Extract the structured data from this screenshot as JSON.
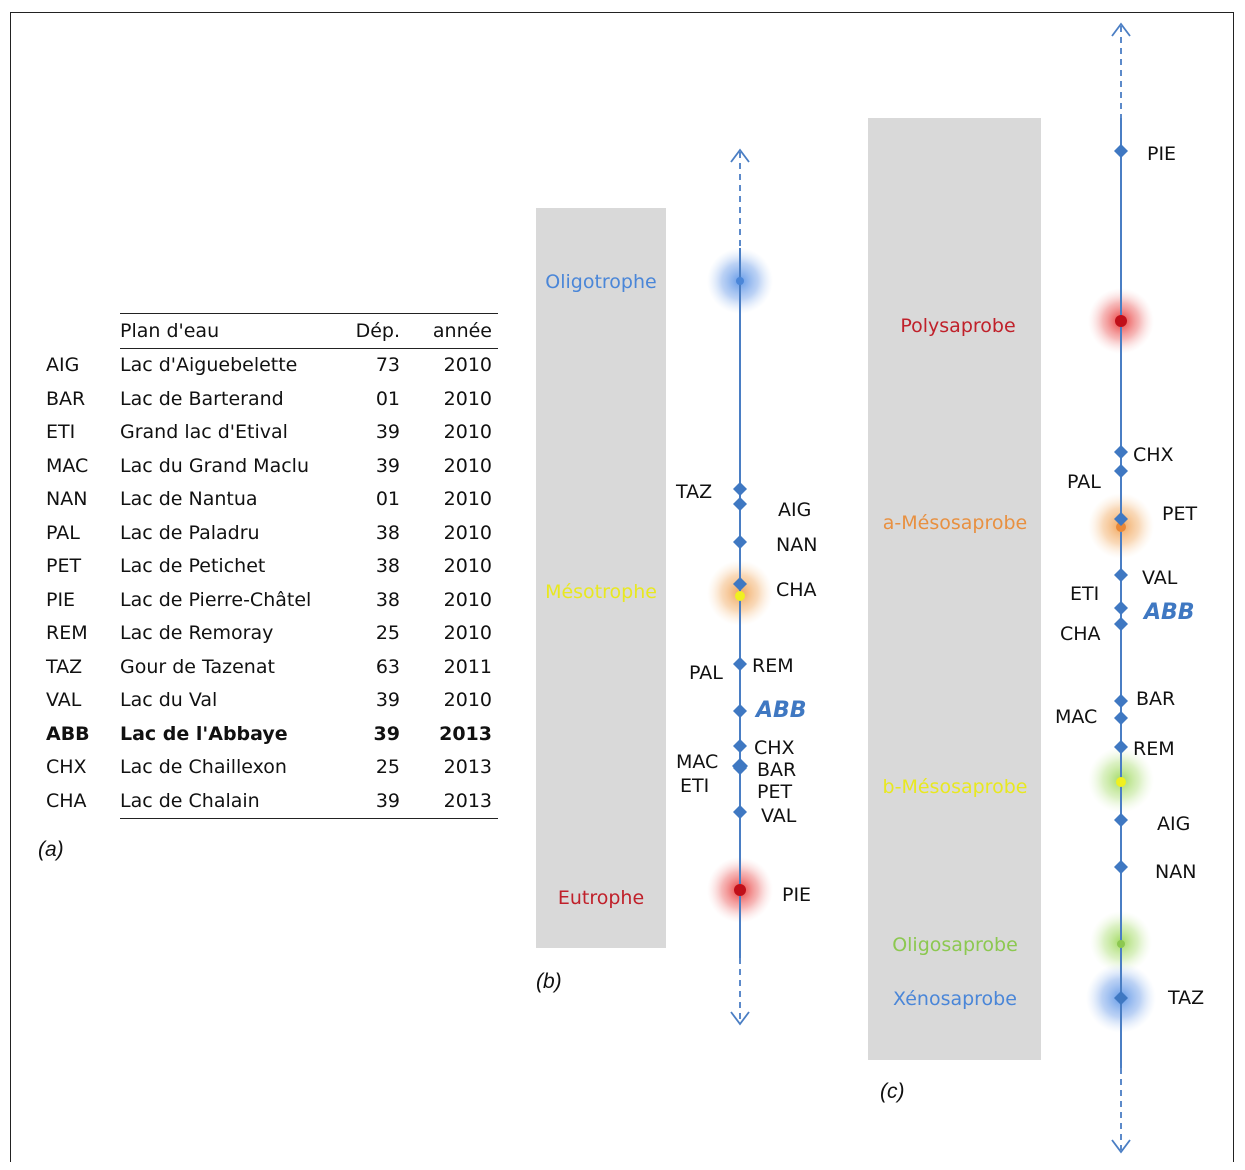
{
  "panel_a": {
    "label": "(a)",
    "headers": [
      "",
      "Plan d'eau",
      "Dép.",
      "année"
    ],
    "rows": [
      {
        "code": "AIG",
        "name": "Lac d'Aiguebelette",
        "dep": "73",
        "year": "2010",
        "bold": false
      },
      {
        "code": "BAR",
        "name": "Lac de Barterand",
        "dep": "01",
        "year": "2010",
        "bold": false
      },
      {
        "code": "ETI",
        "name": "Grand lac d'Etival",
        "dep": "39",
        "year": "2010",
        "bold": false
      },
      {
        "code": "MAC",
        "name": "Lac du Grand Maclu",
        "dep": "39",
        "year": "2010",
        "bold": false
      },
      {
        "code": "NAN",
        "name": "Lac de Nantua",
        "dep": "01",
        "year": "2010",
        "bold": false
      },
      {
        "code": "PAL",
        "name": "Lac de Paladru",
        "dep": "38",
        "year": "2010",
        "bold": false
      },
      {
        "code": "PET",
        "name": "Lac de Petichet",
        "dep": "38",
        "year": "2010",
        "bold": false
      },
      {
        "code": "PIE",
        "name": "Lac de Pierre-Châtel",
        "dep": "38",
        "year": "2010",
        "bold": false
      },
      {
        "code": "REM",
        "name": "Lac de Remoray",
        "dep": "25",
        "year": "2010",
        "bold": false
      },
      {
        "code": "TAZ",
        "name": "Gour de Tazenat",
        "dep": "63",
        "year": "2011",
        "bold": false
      },
      {
        "code": "VAL",
        "name": "Lac du Val",
        "dep": "39",
        "year": "2010",
        "bold": false
      },
      {
        "code": "ABB",
        "name": "Lac de l'Abbaye",
        "dep": "39",
        "year": "2013",
        "bold": true
      },
      {
        "code": "CHX",
        "name": "Lac de Chaillexon",
        "dep": "25",
        "year": "2013",
        "bold": false
      },
      {
        "code": "CHA",
        "name": "Lac de Chalain",
        "dep": "39",
        "year": "2013",
        "bold": false
      }
    ]
  },
  "panel_b": {
    "label": "(b)",
    "zones": [
      {
        "label": "Oligotrophe",
        "color": "#4a86d8",
        "glow": "#5b94e6"
      },
      {
        "label": "Mésotrophe",
        "color": "#e8e820",
        "glow": "#f0a050"
      },
      {
        "label": "Eutrophe",
        "color": "#c0202a",
        "glow": "#e8302f"
      }
    ],
    "lakes": [
      "TAZ",
      "AIG",
      "NAN",
      "CHA",
      "PAL",
      "REM",
      "ABB",
      "MAC",
      "ETI",
      "CHX",
      "BAR",
      "PET",
      "VAL",
      "PIE"
    ]
  },
  "panel_c": {
    "label": "(c)",
    "zones": [
      {
        "label": "Polysaprobe",
        "color": "#c0202a",
        "glow": "#e8302f"
      },
      {
        "label": "a-Mésosaprobe",
        "color": "#e89040",
        "glow": "#f0a050"
      },
      {
        "label": "b-Mésosaprobe",
        "color": "#e8e820",
        "glow": "#9ed85a"
      },
      {
        "label": "Oligosaprobe",
        "color": "#8cc850",
        "glow": "#9ed85a"
      },
      {
        "label": "Xénosaprobe",
        "color": "#4a86d8",
        "glow": "#5b94e6"
      }
    ],
    "lakes": [
      "PIE",
      "CHX",
      "PAL",
      "PET",
      "VAL",
      "ETI",
      "ABB",
      "CHA",
      "BAR",
      "MAC",
      "REM",
      "AIG",
      "NAN",
      "TAZ"
    ]
  },
  "colors": {
    "axis": "#4a7ec4",
    "marker": "#3f78c2",
    "zone_panel": "#d9d9d9",
    "highlight": "#3f78c2",
    "text": "#111111"
  }
}
